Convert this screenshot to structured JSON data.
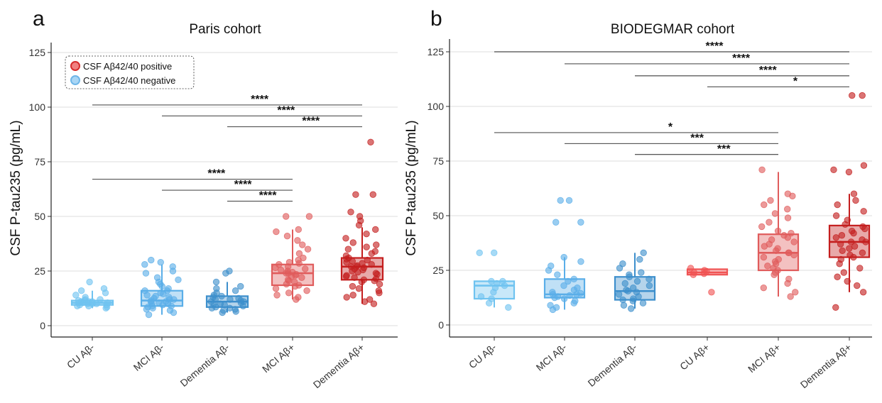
{
  "legend": {
    "entries": [
      {
        "label": "CSF Aβ42/40 positive",
        "color": "#d62c2c"
      },
      {
        "label": "CSF Aβ42/40 negative",
        "color": "#6fb6e8"
      }
    ]
  },
  "chart_data": [
    {
      "type": "box",
      "panel_letter": "a",
      "title": "Paris cohort",
      "ylabel": "CSF P-tau235 (pg/mL)",
      "xlabel": "",
      "ylim": [
        0,
        125
      ],
      "yticks": [
        0,
        25,
        50,
        75,
        100,
        125
      ],
      "grid": "horizontal",
      "legend_position": "top-left",
      "categories": [
        "CU Aβ-",
        "MCI Aβ-",
        "Dementia Aβ-",
        "MCI Aβ+",
        "Dementia Aβ+"
      ],
      "series": [
        {
          "category": "CU Aβ-",
          "status": "negative",
          "color": "#6fc3f0",
          "min": 8,
          "q1": 9.5,
          "median": 10.5,
          "q3": 11.5,
          "max": 16,
          "points": [
            8,
            8.5,
            9,
            9,
            9.5,
            9.5,
            10,
            10,
            10,
            10.5,
            10.5,
            10.5,
            11,
            11,
            11,
            11.5,
            11.5,
            12,
            12,
            13,
            14,
            15,
            16,
            17,
            20
          ]
        },
        {
          "category": "MCI Aβ-",
          "status": "negative",
          "color": "#5aaee8",
          "min": 5,
          "q1": 9,
          "median": 11.5,
          "q3": 16,
          "max": 28,
          "points": [
            5,
            6,
            7,
            7.5,
            8,
            8.5,
            9,
            9,
            9.5,
            10,
            10,
            10.5,
            11,
            11,
            11.5,
            12,
            12,
            12.5,
            13,
            13.5,
            14,
            14.5,
            15,
            16,
            16,
            17,
            18,
            19,
            20,
            21,
            22,
            24,
            25,
            27,
            28,
            29,
            30
          ]
        },
        {
          "category": "Dementia Aβ-",
          "status": "negative",
          "color": "#3d8fcc",
          "min": 6,
          "q1": 8.5,
          "median": 11,
          "q3": 13.5,
          "max": 20,
          "points": [
            6,
            6.5,
            7,
            7.5,
            8,
            8,
            8.5,
            9,
            9.5,
            10,
            10,
            10.5,
            11,
            11,
            11.5,
            12,
            12,
            12.5,
            13,
            13.5,
            14,
            15,
            16,
            17,
            18,
            20,
            24,
            25
          ]
        },
        {
          "category": "MCI Aβ+",
          "status": "positive",
          "color": "#e05c5c",
          "min": 12,
          "q1": 18.5,
          "median": 24,
          "q3": 28,
          "max": 44,
          "points": [
            12,
            13,
            14,
            15,
            16,
            17,
            18,
            18.5,
            19,
            20,
            20.5,
            21,
            22,
            22.5,
            23,
            23.5,
            24,
            24,
            24.5,
            25,
            25.5,
            26,
            26.5,
            27,
            28,
            28.5,
            29,
            30,
            31,
            33,
            35,
            37,
            39,
            41,
            43,
            44,
            50,
            50
          ]
        },
        {
          "category": "Dementia Aβ+",
          "status": "positive",
          "color": "#c41e1e",
          "min": 10,
          "q1": 21,
          "median": 27,
          "q3": 31,
          "max": 45,
          "points": [
            10,
            11,
            12,
            13,
            14,
            15,
            16,
            17,
            18,
            19,
            20,
            20.5,
            21,
            21.5,
            22,
            22.5,
            23,
            23.5,
            24,
            24.5,
            25,
            25.5,
            26,
            26.5,
            27,
            27,
            27.5,
            28,
            28.5,
            29,
            29.5,
            30,
            30.5,
            31,
            32,
            33,
            34,
            35,
            36,
            37,
            38,
            40,
            42,
            44,
            46,
            48,
            50,
            52,
            60,
            60,
            84
          ]
        }
      ],
      "comparisons": [
        {
          "from": 0,
          "to": 4,
          "label": "****",
          "y": 101
        },
        {
          "from": 1,
          "to": 4,
          "label": "****",
          "y": 96
        },
        {
          "from": 2,
          "to": 4,
          "label": "****",
          "y": 91
        },
        {
          "from": 0,
          "to": 3,
          "label": "****",
          "y": 67
        },
        {
          "from": 1,
          "to": 3,
          "label": "****",
          "y": 62
        },
        {
          "from": 2,
          "to": 3,
          "label": "****",
          "y": 57
        }
      ]
    },
    {
      "type": "box",
      "panel_letter": "b",
      "title": "BIODEGMAR cohort",
      "ylabel": "CSF P-tau235 (pg/mL)",
      "xlabel": "",
      "ylim": [
        0,
        125
      ],
      "yticks": [
        0,
        25,
        50,
        75,
        100,
        125
      ],
      "grid": "horizontal",
      "categories": [
        "CU Aβ-",
        "MCI Aβ-",
        "Dementia Aβ-",
        "CU Aβ+",
        "MCI Aβ+",
        "Dementia Aβ+"
      ],
      "series": [
        {
          "category": "CU Aβ-",
          "status": "negative",
          "color": "#6fc3f0",
          "min": 8,
          "q1": 12,
          "median": 18,
          "q3": 20,
          "max": 20,
          "points": [
            8,
            10,
            12,
            13,
            15,
            17,
            18,
            19,
            20,
            20,
            33,
            33
          ]
        },
        {
          "category": "MCI Aβ-",
          "status": "negative",
          "color": "#5aaee8",
          "min": 7,
          "q1": 12.5,
          "median": 14,
          "q3": 21,
          "max": 31,
          "points": [
            7,
            8,
            9,
            10,
            11,
            12,
            12.5,
            13,
            13.5,
            14,
            14,
            14.5,
            15,
            16,
            17,
            18,
            20,
            21,
            23,
            25,
            27,
            29,
            31,
            47,
            47,
            57,
            57
          ]
        },
        {
          "category": "Dementia Aβ-",
          "status": "negative",
          "color": "#3d8fcc",
          "min": 7.5,
          "q1": 11.5,
          "median": 15.5,
          "q3": 22,
          "max": 33,
          "points": [
            7.5,
            9,
            10,
            11,
            11.5,
            12,
            13,
            14,
            15,
            15.5,
            16,
            17,
            18,
            19,
            20,
            21,
            22,
            23,
            24,
            26,
            28,
            30,
            33
          ]
        },
        {
          "category": "CU Aβ+",
          "status": "positive",
          "color": "#f05454",
          "min": 23,
          "q1": 23,
          "median": 24,
          "q3": 25.5,
          "max": 26,
          "points": [
            15,
            23,
            23.5,
            24,
            24.5,
            25,
            26
          ]
        },
        {
          "category": "MCI Aβ+",
          "status": "positive",
          "color": "#e05c5c",
          "min": 13,
          "q1": 25,
          "median": 33,
          "q3": 41.5,
          "max": 70,
          "points": [
            13,
            15,
            17,
            19,
            21,
            23,
            24,
            25,
            26,
            27,
            28,
            29,
            30,
            31,
            32,
            33,
            33,
            34,
            35,
            36,
            37,
            38,
            39,
            40,
            41,
            42,
            43,
            45,
            47,
            49,
            51,
            53,
            55,
            57,
            59,
            60,
            71
          ]
        },
        {
          "category": "Dementia Aβ+",
          "status": "positive",
          "color": "#c41e1e",
          "min": 15,
          "q1": 31,
          "median": 38,
          "q3": 45.5,
          "max": 60,
          "points": [
            8,
            15,
            18,
            20,
            22,
            24,
            26,
            28,
            30,
            31,
            32,
            33,
            34,
            35,
            36,
            37,
            38,
            38,
            39,
            40,
            41,
            42,
            43,
            44,
            45,
            46,
            48,
            50,
            52,
            55,
            57,
            60,
            70,
            71,
            73,
            105,
            105
          ]
        }
      ],
      "comparisons": [
        {
          "from": 0,
          "to": 5,
          "label": "****",
          "y": 125
        },
        {
          "from": 1,
          "to": 5,
          "label": "****",
          "y": 119.5
        },
        {
          "from": 2,
          "to": 5,
          "label": "****",
          "y": 114
        },
        {
          "from": 3,
          "to": 5,
          "label": "*",
          "y": 109
        },
        {
          "from": 0,
          "to": 4,
          "label": "*",
          "y": 88
        },
        {
          "from": 1,
          "to": 4,
          "label": "***",
          "y": 83
        },
        {
          "from": 2,
          "to": 4,
          "label": "***",
          "y": 78
        }
      ]
    }
  ]
}
